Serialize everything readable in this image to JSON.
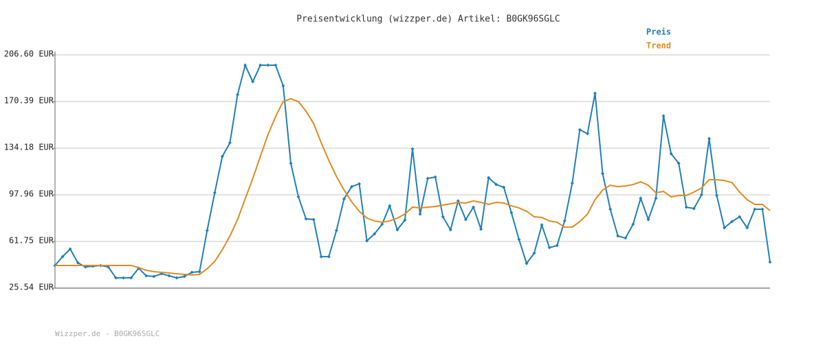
{
  "chart_data": {
    "type": "line",
    "title": "Preisentwicklung (wizzper.de) Artikel: B0GK96SGLC",
    "footer": "Wizzper.de - B0GK96SGLC",
    "ylim": [
      25.54,
      206.6
    ],
    "yticks": [
      {
        "value": 25.54,
        "label": "25.54 EUR"
      },
      {
        "value": 61.75,
        "label": "61.75 EUR"
      },
      {
        "value": 97.96,
        "label": "97.96 EUR"
      },
      {
        "value": 134.18,
        "label": "134.18 EUR"
      },
      {
        "value": 170.39,
        "label": "170.39 EUR"
      },
      {
        "value": 206.6,
        "label": "206.60 EUR"
      }
    ],
    "grid": true,
    "legend": "top-right",
    "series": [
      {
        "name": "Preis",
        "color": "#1f7fb8",
        "markers": true,
        "values": [
          43.1,
          50.0,
          55.9,
          45.2,
          42.0,
          42.6,
          43.1,
          42.0,
          33.5,
          33.5,
          33.5,
          41.0,
          35.1,
          34.6,
          36.7,
          35.1,
          33.5,
          34.6,
          37.8,
          38.3,
          70.3,
          99.6,
          127.8,
          138.4,
          175.7,
          198.6,
          185.8,
          198.6,
          198.6,
          198.6,
          182.6,
          122.4,
          96.4,
          79.3,
          78.8,
          50.0,
          50.0,
          70.3,
          94.8,
          104.3,
          106.5,
          62.3,
          67.6,
          75.1,
          89.4,
          70.8,
          78.3,
          133.6,
          83.0,
          110.7,
          111.8,
          80.9,
          70.8,
          93.2,
          78.8,
          88.4,
          71.3,
          111.3,
          106.0,
          103.8,
          84.1,
          63.3,
          44.7,
          52.7,
          74.5,
          57.0,
          58.6,
          77.7,
          107.0,
          148.5,
          145.4,
          176.8,
          114.5,
          86.8,
          66.0,
          64.4,
          75.1,
          95.3,
          78.8,
          95.3,
          159.2,
          129.9,
          122.4,
          88.4,
          87.3,
          98.0,
          141.6,
          97.4,
          72.4,
          77.2,
          80.9,
          72.4,
          86.8,
          86.8,
          45.8
        ]
      },
      {
        "name": "Trend",
        "color": "#e08a1e",
        "markers": false,
        "values": [
          43.1,
          43.1,
          43.1,
          43.1,
          43.1,
          43.1,
          43.1,
          43.1,
          43.1,
          43.1,
          43.1,
          41.5,
          39.4,
          38.3,
          37.8,
          37.3,
          36.7,
          36.2,
          35.7,
          36.2,
          40.5,
          46.3,
          55.4,
          66.0,
          78.8,
          94.8,
          110.7,
          127.8,
          144.8,
          158.7,
          170.4,
          172.5,
          170.4,
          162.9,
          153.3,
          138.4,
          124.6,
          112.3,
          101.7,
          92.6,
          85.2,
          79.9,
          77.7,
          76.7,
          77.7,
          79.9,
          83.0,
          88.4,
          87.8,
          88.4,
          88.9,
          90.0,
          91.0,
          92.1,
          91.6,
          93.2,
          92.1,
          90.5,
          92.1,
          91.6,
          89.4,
          87.8,
          85.2,
          80.9,
          80.4,
          77.7,
          76.7,
          72.9,
          72.9,
          77.2,
          83.0,
          94.2,
          101.7,
          105.4,
          104.3,
          104.9,
          105.9,
          108.1,
          105.4,
          99.6,
          100.6,
          96.4,
          97.4,
          97.4,
          100.1,
          103.3,
          109.7,
          109.7,
          109.1,
          107.5,
          100.1,
          94.2,
          90.5,
          90.5,
          85.7
        ]
      }
    ]
  }
}
